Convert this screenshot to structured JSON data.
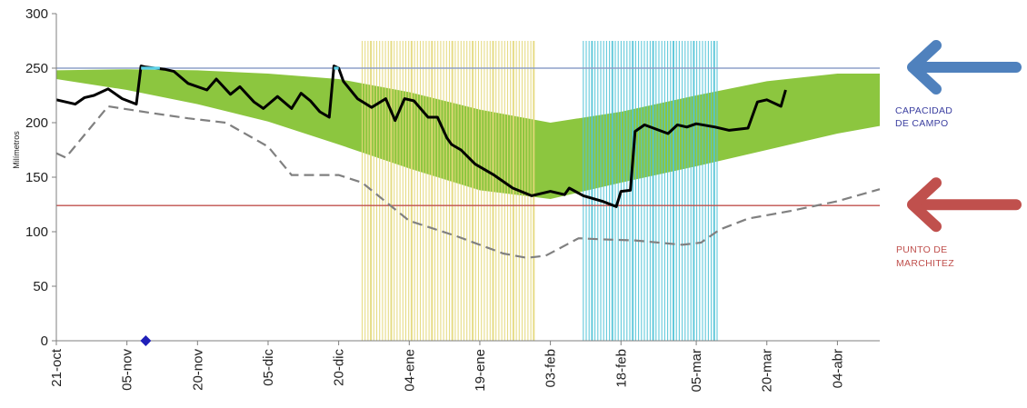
{
  "chart_data": {
    "type": "line",
    "title": "",
    "ylabel": "Milímetros",
    "xlabel": "",
    "ylim": [
      0,
      300
    ],
    "yticks": [
      0,
      50,
      100,
      150,
      200,
      250,
      300
    ],
    "xlim": [
      "2011-10-21",
      "2012-04-13"
    ],
    "xticks": [
      "21-oct",
      "05-nov",
      "20-nov",
      "05-dic",
      "20-dic",
      "04-ene",
      "19-ene",
      "03-feb",
      "18-feb",
      "05-mar",
      "20-mar",
      "04-abr"
    ],
    "xtick_dates": [
      "2011-10-21",
      "2011-11-05",
      "2011-11-20",
      "2011-12-05",
      "2011-12-20",
      "2012-01-04",
      "2012-01-19",
      "2012-02-03",
      "2012-02-18",
      "2012-03-05",
      "2012-03-20",
      "2012-04-04"
    ],
    "reference_lines": [
      {
        "name": "Capacidad de campo",
        "value": 250,
        "color": "#8ea0c8"
      },
      {
        "name": "Punto de marchitez",
        "value": 124,
        "color": "#c0504d"
      }
    ],
    "band": {
      "color": "#8cc63f",
      "x": [
        "2011-10-21",
        "2011-11-05",
        "2011-11-20",
        "2011-12-05",
        "2011-12-20",
        "2012-01-04",
        "2012-01-19",
        "2012-02-03",
        "2012-02-18",
        "2012-03-05",
        "2012-03-20",
        "2012-04-04",
        "2012-04-13"
      ],
      "upper": [
        248,
        249,
        248,
        245,
        240,
        228,
        212,
        200,
        210,
        225,
        238,
        245,
        245
      ],
      "lower": [
        240,
        230,
        217,
        201,
        180,
        158,
        138,
        130,
        145,
        160,
        175,
        190,
        197
      ]
    },
    "series": [
      {
        "style": "solid-black",
        "color": "#000000",
        "x": [
          "2011-10-21",
          "2011-10-25",
          "2011-10-27",
          "2011-10-29",
          "2011-11-01",
          "2011-11-04",
          "2011-11-07",
          "2011-11-08",
          "2011-11-09",
          "2011-11-13",
          "2011-11-15",
          "2011-11-18",
          "2011-11-22",
          "2011-11-24",
          "2011-11-27",
          "2011-11-29",
          "2011-12-02",
          "2011-12-04",
          "2011-12-07",
          "2011-12-10",
          "2011-12-12",
          "2011-12-14",
          "2011-12-16",
          "2011-12-18",
          "2011-12-19",
          "2011-12-20",
          "2011-12-21",
          "2011-12-24",
          "2011-12-27",
          "2011-12-30",
          "2012-01-01",
          "2012-01-03",
          "2012-01-05",
          "2012-01-08",
          "2012-01-10",
          "2012-01-12",
          "2012-01-13",
          "2012-01-15",
          "2012-01-18",
          "2012-01-22",
          "2012-01-26",
          "2012-01-30",
          "2012-02-03",
          "2012-02-06",
          "2012-02-07",
          "2012-02-10",
          "2012-02-14",
          "2012-02-17",
          "2012-02-18",
          "2012-02-20",
          "2012-02-21",
          "2012-02-23",
          "2012-02-28",
          "2012-03-01",
          "2012-03-03",
          "2012-03-05",
          "2012-03-09",
          "2012-03-12",
          "2012-03-16",
          "2012-03-18",
          "2012-03-20",
          "2012-03-23",
          "2012-03-24"
        ],
        "y": [
          221,
          217,
          223,
          225,
          231,
          222,
          217,
          252,
          251,
          249,
          247,
          236,
          230,
          240,
          226,
          233,
          219,
          213,
          224,
          213,
          227,
          220,
          210,
          205,
          252,
          250,
          238,
          222,
          214,
          222,
          202,
          222,
          220,
          205,
          205,
          186,
          180,
          175,
          162,
          152,
          140,
          133,
          137,
          134,
          140,
          133,
          128,
          123,
          137,
          138,
          192,
          198,
          190,
          198,
          196,
          199,
          196,
          193,
          195,
          219,
          221,
          215,
          230
        ]
      },
      {
        "style": "dashed-gray",
        "color": "#808080",
        "x": [
          "2011-10-21",
          "2011-10-23",
          "2011-11-01",
          "2011-11-10",
          "2011-11-18",
          "2011-11-26",
          "2011-12-05",
          "2011-12-10",
          "2011-12-17",
          "2011-12-20",
          "2011-12-25",
          "2012-01-04",
          "2012-01-14",
          "2012-01-24",
          "2012-01-29",
          "2012-02-02",
          "2012-02-09",
          "2012-02-14",
          "2012-02-21",
          "2012-03-02",
          "2012-03-06",
          "2012-03-10",
          "2012-03-16",
          "2012-03-25",
          "2012-04-04",
          "2012-04-13"
        ],
        "y": [
          172,
          168,
          215,
          209,
          204,
          200,
          178,
          152,
          152,
          152,
          145,
          110,
          96,
          80,
          76,
          78,
          94,
          93,
          92,
          88,
          90,
          102,
          112,
          119,
          128,
          139
        ]
      }
    ],
    "cyan_segments": [
      {
        "x": [
          "2011-11-08",
          "2011-11-12"
        ],
        "y": [
          250,
          250
        ]
      },
      {
        "x": [
          "2011-12-19",
          "2011-12-20"
        ],
        "y": [
          250,
          250
        ]
      }
    ],
    "marker": {
      "x": "2011-11-09",
      "y": 0,
      "color": "#1f1fb8",
      "shape": "diamond"
    },
    "shaded_periods": [
      {
        "color": "#e4d97a",
        "start": "2011-12-25",
        "end": "2012-01-31",
        "top": 275
      },
      {
        "color": "#52c4d8",
        "start": "2012-02-10",
        "end": "2012-03-10",
        "top": 275
      }
    ],
    "annotations": {
      "capacidad": [
        "CAPACIDAD",
        "DE  CAMPO"
      ],
      "marchitez": [
        "PUNTO   DE",
        "MARCHITEZ"
      ]
    },
    "arrows": [
      {
        "name": "capacidad-arrow",
        "color": "#4f81bd",
        "value": 250
      },
      {
        "name": "marchitez-arrow",
        "color": "#c0504d",
        "value": 124
      }
    ]
  }
}
